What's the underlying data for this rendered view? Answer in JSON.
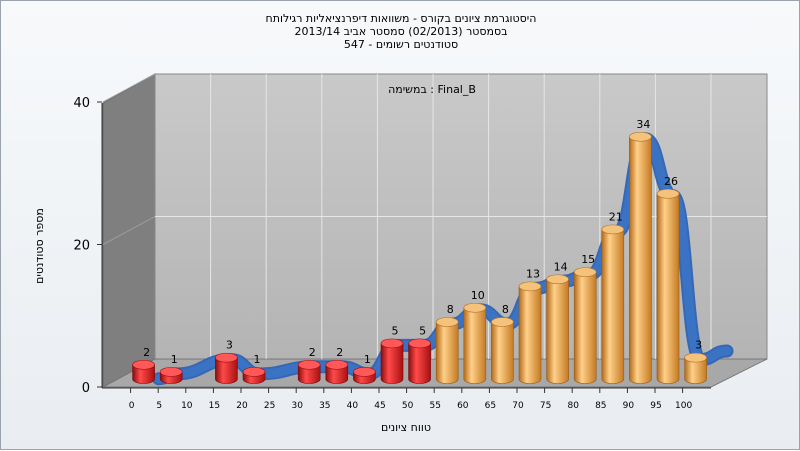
{
  "titles": {
    "line1": "היסטוגרמת ציונים בקורס - משוואות דיפרנציאליות רגילותח",
    "line2": "בסמסטר (02/2013) סמסטר אביב 2013/14",
    "line3": "סטודנטים רשומים - 547"
  },
  "chart_data": {
    "type": "bar",
    "title": "היסטוגרמת ציונים בקורס - משוואות דיפרנציאליות רגילותח",
    "annotation": "במשימה : Final_B",
    "xlabel": "טווח ציונים",
    "ylabel": "מספר סטודנטים",
    "ylim": [
      0,
      40
    ],
    "y_ticks": [
      "0",
      "20",
      "40"
    ],
    "x_ticks": [
      "0",
      "5",
      "10",
      "15",
      "20",
      "25",
      "30",
      "35",
      "40",
      "45",
      "50",
      "55",
      "60",
      "65",
      "70",
      "75",
      "80",
      "85",
      "90",
      "95",
      "100"
    ],
    "bars": [
      {
        "x": 0,
        "value": 2,
        "color": "#d42020"
      },
      {
        "x": 5,
        "value": 1,
        "color": "#d42020"
      },
      {
        "x": 15,
        "value": 3,
        "color": "#d42020"
      },
      {
        "x": 20,
        "value": 1,
        "color": "#d42020"
      },
      {
        "x": 30,
        "value": 2,
        "color": "#d42020"
      },
      {
        "x": 35,
        "value": 2,
        "color": "#d42020"
      },
      {
        "x": 40,
        "value": 1,
        "color": "#d42020"
      },
      {
        "x": 45,
        "value": 5,
        "color": "#d42020"
      },
      {
        "x": 50,
        "value": 5,
        "color": "#d42020"
      },
      {
        "x": 55,
        "value": 8,
        "color": "#e8a040"
      },
      {
        "x": 60,
        "value": 10,
        "color": "#e8a040"
      },
      {
        "x": 65,
        "value": 8,
        "color": "#e8a040"
      },
      {
        "x": 70,
        "value": 13,
        "color": "#e8a040"
      },
      {
        "x": 75,
        "value": 14,
        "color": "#e8a040"
      },
      {
        "x": 80,
        "value": 15,
        "color": "#e8a040"
      },
      {
        "x": 85,
        "value": 21,
        "color": "#e8a040"
      },
      {
        "x": 90,
        "value": 34,
        "color": "#e8a040"
      },
      {
        "x": 95,
        "value": 26,
        "color": "#e8a040"
      },
      {
        "x": 100,
        "value": 3,
        "color": "#e8a040"
      }
    ],
    "ribbon_color": "#3a73c4",
    "grid": true
  }
}
